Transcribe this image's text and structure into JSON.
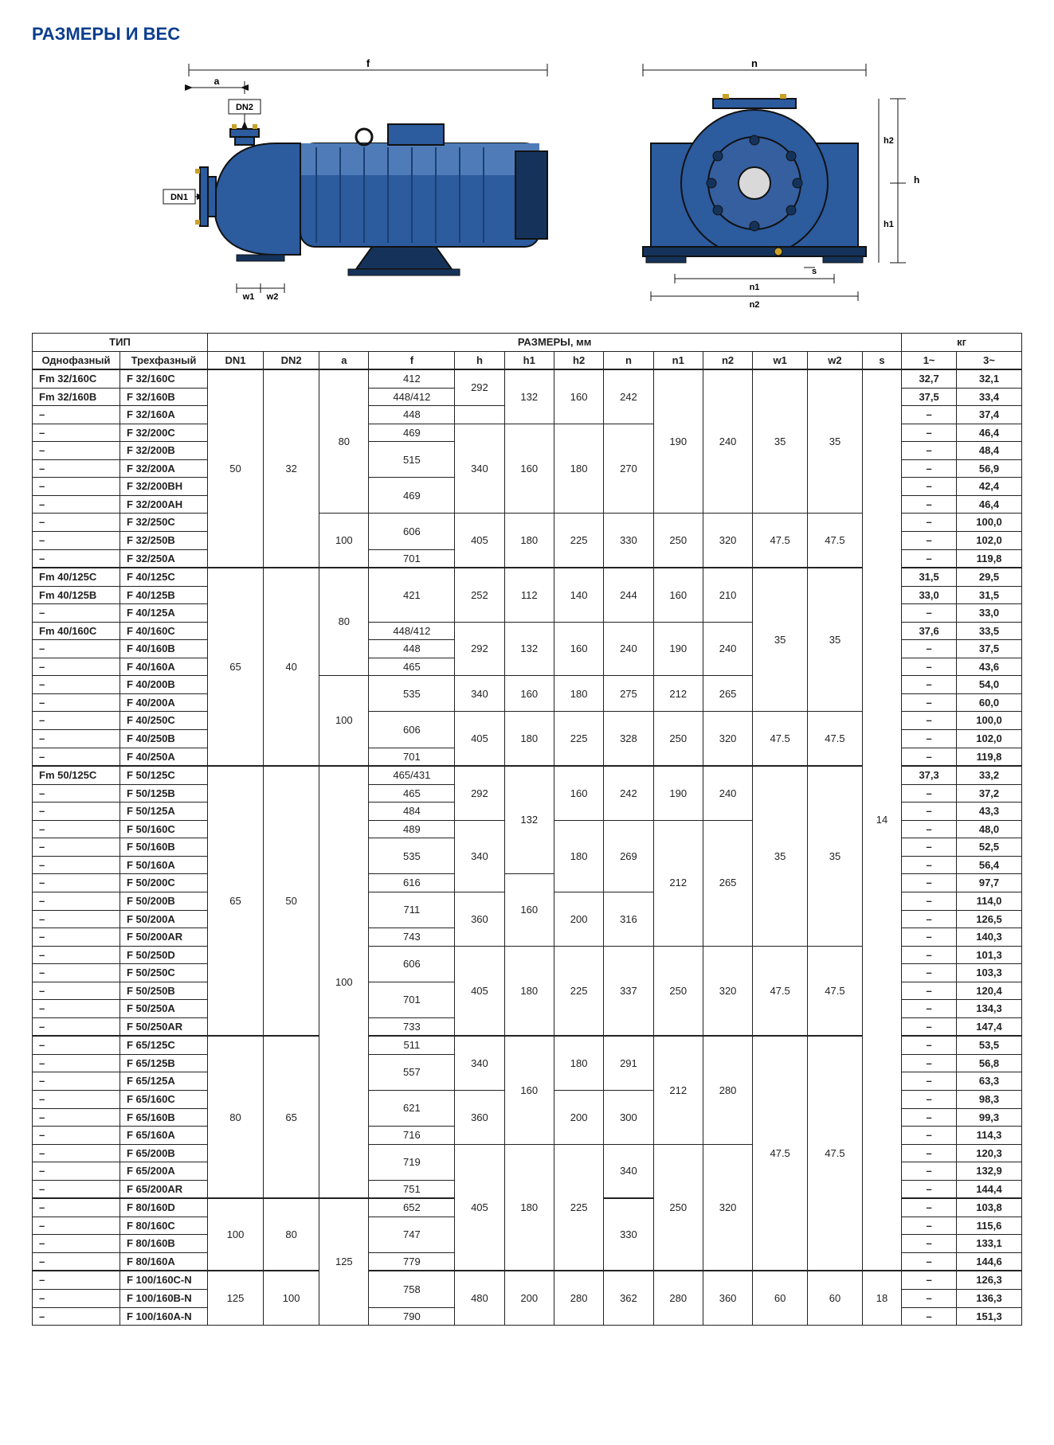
{
  "title": "РАЗМЕРЫ И ВЕС",
  "title_color": "#0a3d8f",
  "diagram_labels": {
    "f": "f",
    "a": "a",
    "dn2": "DN2",
    "dn1": "DN1",
    "w1": "w1",
    "w2": "w2",
    "n": "n",
    "h": "h",
    "h1": "h1",
    "h2": "h2",
    "n1": "n1",
    "n2": "n2",
    "s": "s"
  },
  "pump_color": "#2c5b9e",
  "pump_highlight": "#4f7cb8",
  "pump_dark": "#15335a",
  "outline_color": "#111111",
  "headers": {
    "type": "ТИП",
    "dims": "РАЗМЕРЫ, мм",
    "kg": "кг",
    "single": "Однофазный",
    "three": "Трехфазный",
    "dn1": "DN1",
    "dn2": "DN2",
    "a": "a",
    "f": "f",
    "h": "h",
    "h1": "h1",
    "h2": "h2",
    "n": "n",
    "n1": "n1",
    "n2": "n2",
    "w1": "w1",
    "w2": "w2",
    "s": "s",
    "kg1": "1~",
    "kg3": "3~"
  },
  "rows": [
    {
      "single": "Fm 32/160C",
      "three": "F 32/160C",
      "dn1": "50",
      "dn2": "32",
      "a": "80",
      "f": "412",
      "h": "292",
      "h1": "132",
      "h2": "160",
      "n": "242",
      "n1": "190",
      "n2": "240",
      "w1": "35",
      "w2": "35",
      "s": "14",
      "kg1": "32,7",
      "kg3": "32,1",
      "thick": true
    },
    {
      "single": "Fm 32/160B",
      "three": "F 32/160B",
      "f": "448/412",
      "kg1": "37,5",
      "kg3": "33,4"
    },
    {
      "single": "–",
      "three": "F 32/160A",
      "f": "448",
      "h": "",
      "kg1": "–",
      "kg3": "37,4"
    },
    {
      "single": "–",
      "three": "F 32/200C",
      "f": "469",
      "h": "340",
      "h1": "160",
      "h2": "180",
      "n": "270",
      "kg1": "–",
      "kg3": "46,4"
    },
    {
      "single": "–",
      "three": "F 32/200B",
      "f": "515",
      "kg1": "–",
      "kg3": "48,4"
    },
    {
      "single": "–",
      "three": "F 32/200A",
      "kg1": "–",
      "kg3": "56,9"
    },
    {
      "single": "–",
      "three": "F 32/200BH",
      "f": "469",
      "kg1": "–",
      "kg3": "42,4"
    },
    {
      "single": "–",
      "three": "F 32/200AH",
      "kg1": "–",
      "kg3": "46,4"
    },
    {
      "single": "–",
      "three": "F 32/250C",
      "a": "100",
      "f": "606",
      "h": "405",
      "h1": "180",
      "h2": "225",
      "n": "330",
      "n1": "250",
      "n2": "320",
      "w1": "47.5",
      "w2": "47.5",
      "kg1": "–",
      "kg3": "100,0"
    },
    {
      "single": "–",
      "three": "F 32/250B",
      "kg1": "–",
      "kg3": "102,0"
    },
    {
      "single": "–",
      "three": "F 32/250A",
      "f": "701",
      "kg1": "–",
      "kg3": "119,8"
    },
    {
      "single": "Fm 40/125C",
      "three": "F 40/125C",
      "dn1": "65",
      "dn2": "40",
      "a": "80",
      "f": "421",
      "h": "252",
      "h1": "112",
      "h2": "140",
      "n": "244",
      "n1": "160",
      "n2": "210",
      "w1": "35",
      "w2": "35",
      "kg1": "31,5",
      "kg3": "29,5",
      "thick": true
    },
    {
      "single": "Fm 40/125B",
      "three": "F 40/125B",
      "kg1": "33,0",
      "kg3": "31,5"
    },
    {
      "single": "–",
      "three": "F 40/125A",
      "kg1": "–",
      "kg3": "33,0"
    },
    {
      "single": "Fm 40/160C",
      "three": "F 40/160C",
      "f": "448/412",
      "h": "292",
      "h1": "132",
      "h2": "160",
      "n": "240",
      "n1": "190",
      "n2": "240",
      "kg1": "37,6",
      "kg3": "33,5"
    },
    {
      "single": "–",
      "three": "F 40/160B",
      "f": "448",
      "kg1": "–",
      "kg3": "37,5"
    },
    {
      "single": "–",
      "three": "F 40/160A",
      "f": "465",
      "kg1": "–",
      "kg3": "43,6"
    },
    {
      "single": "–",
      "three": "F 40/200B",
      "a": "100",
      "f": "535",
      "h": "340",
      "h1": "160",
      "h2": "180",
      "n": "275",
      "n1": "212",
      "n2": "265",
      "kg1": "–",
      "kg3": "54,0"
    },
    {
      "single": "–",
      "three": "F 40/200A",
      "kg1": "–",
      "kg3": "60,0"
    },
    {
      "single": "–",
      "three": "F 40/250C",
      "f": "606",
      "h": "405",
      "h1": "180",
      "h2": "225",
      "n": "328",
      "n1": "250",
      "n2": "320",
      "w1": "47.5",
      "w2": "47.5",
      "kg1": "–",
      "kg3": "100,0"
    },
    {
      "single": "–",
      "three": "F 40/250B",
      "kg1": "–",
      "kg3": "102,0"
    },
    {
      "single": "–",
      "three": "F 40/250A",
      "f": "701",
      "kg1": "–",
      "kg3": "119,8"
    },
    {
      "single": "Fm 50/125C",
      "three": "F 50/125C",
      "dn1": "65",
      "dn2": "50",
      "a": "100",
      "f": "465/431",
      "h": "292",
      "h1": "132",
      "h2": "160",
      "n": "242",
      "n1": "190",
      "n2": "240",
      "w1": "35",
      "w2": "35",
      "kg1": "37,3",
      "kg3": "33,2",
      "thick": true
    },
    {
      "single": "–",
      "three": "F 50/125B",
      "f": "465",
      "kg1": "–",
      "kg3": "37,2"
    },
    {
      "single": "–",
      "three": "F 50/125A",
      "f": "484",
      "kg1": "–",
      "kg3": "43,3"
    },
    {
      "single": "–",
      "three": "F 50/160C",
      "f": "489",
      "h": "340",
      "h2": "180",
      "n": "269",
      "n1": "212",
      "n2": "265",
      "kg1": "–",
      "kg3": "48,0"
    },
    {
      "single": "–",
      "three": "F 50/160B",
      "f": "535",
      "kg1": "–",
      "kg3": "52,5"
    },
    {
      "single": "–",
      "three": "F 50/160A",
      "kg1": "–",
      "kg3": "56,4"
    },
    {
      "single": "–",
      "three": "F 50/200C",
      "f": "616",
      "h1": "160",
      "kg1": "–",
      "kg3": "97,7"
    },
    {
      "single": "–",
      "three": "F 50/200B",
      "f": "711",
      "h": "360",
      "h2": "200",
      "n": "316",
      "kg1": "–",
      "kg3": "114,0"
    },
    {
      "single": "–",
      "three": "F 50/200A",
      "kg1": "–",
      "kg3": "126,5"
    },
    {
      "single": "–",
      "three": "F 50/200AR",
      "f": "743",
      "kg1": "–",
      "kg3": "140,3"
    },
    {
      "single": "–",
      "three": "F 50/250D",
      "f": "606",
      "h": "405",
      "h1": "180",
      "h2": "225",
      "n": "337",
      "n1": "250",
      "n2": "320",
      "w1": "47.5",
      "w2": "47.5",
      "kg1": "–",
      "kg3": "101,3"
    },
    {
      "single": "–",
      "three": "F 50/250C",
      "kg1": "–",
      "kg3": "103,3"
    },
    {
      "single": "–",
      "three": "F 50/250B",
      "f": "701",
      "kg1": "–",
      "kg3": "120,4"
    },
    {
      "single": "–",
      "three": "F 50/250A",
      "kg1": "–",
      "kg3": "134,3"
    },
    {
      "single": "–",
      "three": "F 50/250AR",
      "f": "733",
      "kg1": "–",
      "kg3": "147,4"
    },
    {
      "single": "–",
      "three": "F 65/125C",
      "dn1": "80",
      "dn2": "65",
      "f": "511",
      "h": "340",
      "h1": "160",
      "h2": "180",
      "n": "291",
      "n1": "212",
      "n2": "280",
      "w1": "47.5",
      "w2": "47.5",
      "kg1": "–",
      "kg3": "53,5",
      "thick": true
    },
    {
      "single": "–",
      "three": "F 65/125B",
      "f": "557",
      "kg1": "–",
      "kg3": "56,8"
    },
    {
      "single": "–",
      "three": "F 65/125A",
      "kg1": "–",
      "kg3": "63,3"
    },
    {
      "single": "–",
      "three": "F 65/160C",
      "f": "621",
      "h": "360",
      "h2": "200",
      "n": "300",
      "kg1": "–",
      "kg3": "98,3"
    },
    {
      "single": "–",
      "three": "F 65/160B",
      "kg1": "–",
      "kg3": "99,3"
    },
    {
      "single": "–",
      "three": "F 65/160A",
      "f": "716",
      "kg1": "–",
      "kg3": "114,3"
    },
    {
      "single": "–",
      "three": "F 65/200B",
      "f": "719",
      "h": "405",
      "h1": "180",
      "h2": "225",
      "n": "340",
      "n1": "250",
      "n2": "320",
      "kg1": "–",
      "kg3": "120,3"
    },
    {
      "single": "–",
      "three": "F 65/200A",
      "kg1": "–",
      "kg3": "132,9"
    },
    {
      "single": "–",
      "three": "F 65/200AR",
      "f": "751",
      "kg1": "–",
      "kg3": "144,4"
    },
    {
      "single": "–",
      "three": "F 80/160D",
      "dn1": "100",
      "dn2": "80",
      "a": "125",
      "f": "652",
      "n": "330",
      "kg1": "–",
      "kg3": "103,8",
      "thick": true
    },
    {
      "single": "–",
      "three": "F 80/160C",
      "f": "747",
      "kg1": "–",
      "kg3": "115,6"
    },
    {
      "single": "–",
      "three": "F 80/160B",
      "kg1": "–",
      "kg3": "133,1"
    },
    {
      "single": "–",
      "three": "F 80/160A",
      "f": "779",
      "kg1": "–",
      "kg3": "144,6"
    },
    {
      "single": "–",
      "three": "F 100/160C-N",
      "dn1": "125",
      "dn2": "100",
      "f": "758",
      "h": "480",
      "h1": "200",
      "h2": "280",
      "n": "362",
      "n1": "280",
      "n2": "360",
      "w1": "60",
      "w2": "60",
      "s": "18",
      "kg1": "–",
      "kg3": "126,3",
      "thick": true
    },
    {
      "single": "–",
      "three": "F 100/160B-N",
      "kg1": "–",
      "kg3": "136,3"
    },
    {
      "single": "–",
      "three": "F 100/160A-N",
      "f": "790",
      "kg1": "–",
      "kg3": "151,3"
    }
  ]
}
